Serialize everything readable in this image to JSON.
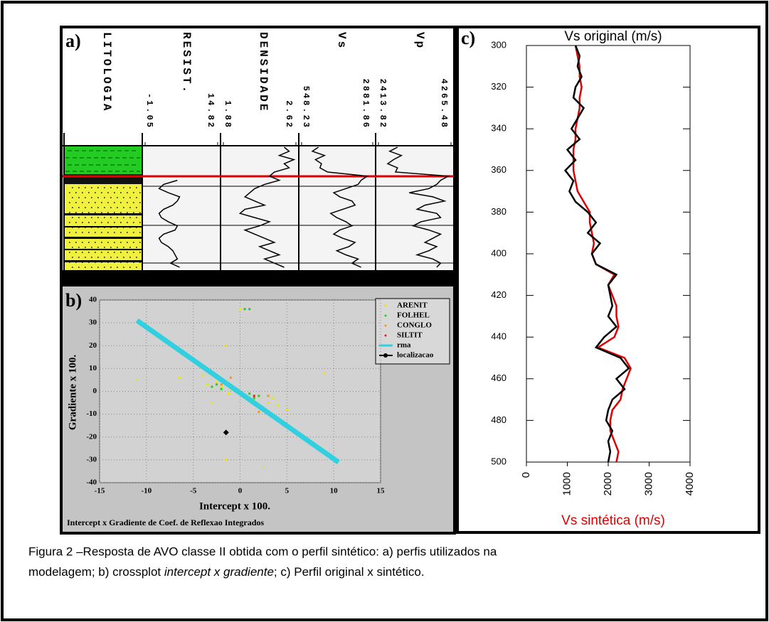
{
  "chart_data": [
    {
      "type": "well-log",
      "panel_label": "a)",
      "lithology_label": "LITOLOGIA",
      "tracks": [
        {
          "name": "RESIST.",
          "xlim": [
            -1.05,
            14.82
          ],
          "xticks": [
            -1.05,
            14.82
          ],
          "color": "#000000",
          "values": [
            null,
            null,
            null,
            null,
            null,
            null,
            null,
            null,
            6,
            3,
            2,
            4,
            6.5,
            6,
            5,
            3,
            2,
            2.5,
            4,
            6,
            5.5,
            3,
            2,
            2.5,
            4,
            5,
            5.5,
            6,
            4.5,
            6.5
          ]
        },
        {
          "name": "DENSIDADE",
          "xlim": [
            1.88,
            2.62
          ],
          "xticks": [
            1.88,
            2.62
          ],
          "color": "#000000",
          "values": [
            2.5,
            2.55,
            2.45,
            2.6,
            2.5,
            2.55,
            2.4,
            2.35,
            2.45,
            2.3,
            2.2,
            2.15,
            2.1,
            2.2,
            2.3,
            2.1,
            2.05,
            2.2,
            2.35,
            2.25,
            2.1,
            2.2,
            2.3,
            2.4,
            2.25,
            2.35,
            2.45,
            2.3,
            2.4,
            2.5
          ]
        },
        {
          "name": "Vs",
          "xlim": [
            548.23,
            2881.86
          ],
          "xticks": [
            548.23,
            2881.86
          ],
          "color": "#000000",
          "values": [
            1100,
            900,
            1300,
            1000,
            1200,
            1150,
            1400,
            2700,
            2500,
            2400,
            2000,
            1600,
            1800,
            2200,
            2300,
            1900,
            1500,
            1700,
            2000,
            2200,
            1800,
            1600,
            1900,
            2300,
            2100,
            1700,
            2000,
            2400,
            2200,
            2500
          ]
        },
        {
          "name": "Vp",
          "xlim": [
            2413.82,
            4265.48
          ],
          "xticks": [
            2413.82,
            4265.48
          ],
          "color": "#000000",
          "values": [
            2900,
            2700,
            3000,
            2800,
            2650,
            2900,
            2850,
            4200,
            4000,
            3900,
            3700,
            3200,
            3800,
            4100,
            3600,
            3400,
            3900,
            4000,
            3500,
            3300,
            3700,
            4000,
            3800,
            3600,
            3900,
            3700,
            3400,
            3800,
            4000,
            3900
          ]
        }
      ]
    },
    {
      "type": "scatter",
      "panel_label": "b)",
      "title": "Intercept x Gradiente de Coef. de Reflexao Integrados",
      "xlabel": "Intercept x 100.",
      "ylabel": "Gradiente x 100.",
      "xlim": [
        -15,
        15
      ],
      "xticks": [
        -15,
        -10,
        -5,
        0,
        5,
        10,
        15
      ],
      "ylim": [
        -40,
        40
      ],
      "yticks": [
        -40,
        -30,
        -20,
        -10,
        0,
        10,
        20,
        30,
        40
      ],
      "grid": true,
      "series": [
        {
          "name": "ARENIT",
          "color": "#e8e800",
          "style": "dot",
          "x": [
            -11,
            -6.5,
            -4,
            -3.5,
            -3,
            -2.5,
            -2,
            -1.5,
            -1,
            -1.5,
            0,
            0.5,
            1,
            1.5,
            2,
            2.5,
            3,
            3.5,
            4,
            5,
            9,
            0,
            2.5,
            -1.2
          ],
          "values": [
            5,
            6,
            7,
            3,
            -5,
            4,
            2,
            20,
            1,
            -30,
            -1,
            -2,
            -3,
            -4,
            -2,
            -7,
            -5,
            -3,
            -6,
            -8,
            8,
            36,
            -33,
            -1
          ]
        },
        {
          "name": "FOLHEL",
          "color": "#22cc22",
          "style": "dot",
          "x": [
            -3,
            -2.5,
            -2,
            -1.5,
            -1,
            -0.5,
            0,
            0.5,
            1,
            1.5,
            2,
            0.5,
            1,
            -1.8
          ],
          "values": [
            2,
            3,
            1,
            4,
            2,
            0,
            -1,
            -2,
            -1,
            -3,
            -2,
            36,
            36,
            5
          ]
        },
        {
          "name": "CONGLO",
          "color": "#e89a20",
          "style": "dot",
          "x": [
            -3,
            -1,
            1,
            2,
            3,
            -2
          ],
          "values": [
            8,
            6,
            -4,
            -9,
            -2,
            3
          ]
        },
        {
          "name": "SILTIT",
          "color": "#e02020",
          "style": "dot",
          "x": [
            0.2,
            1.5
          ],
          "values": [
            -1,
            -2
          ]
        },
        {
          "name": "rma",
          "color": "#30d0e0",
          "style": "line",
          "x": [
            -11,
            10.5
          ],
          "values": [
            31,
            -31
          ]
        },
        {
          "name": "localizacao",
          "color": "#000000",
          "style": "diamond",
          "x": [
            -1.5
          ],
          "values": [
            -18
          ]
        }
      ]
    },
    {
      "type": "line",
      "panel_label": "c)",
      "orientation": "vertical",
      "x": [
        300,
        305,
        310,
        315,
        320,
        325,
        330,
        335,
        340,
        345,
        350,
        355,
        360,
        365,
        370,
        375,
        380,
        385,
        390,
        395,
        400,
        405,
        410,
        415,
        420,
        425,
        430,
        435,
        440,
        445,
        450,
        455,
        460,
        465,
        470,
        475,
        480,
        485,
        490,
        495,
        500
      ],
      "xlim": [
        300,
        500
      ],
      "xticks": [
        300,
        320,
        340,
        360,
        380,
        400,
        420,
        440,
        460,
        480,
        500
      ],
      "ylim": [
        0,
        4000
      ],
      "yticks": [
        0,
        1000,
        2000,
        3000,
        4000
      ],
      "series": [
        {
          "name": "Vs original (m/s)",
          "color": "#000000",
          "values": [
            1200,
            1300,
            1250,
            1350,
            1200,
            1150,
            1400,
            1250,
            1100,
            1300,
            1000,
            1200,
            950,
            1150,
            1050,
            1200,
            1500,
            1700,
            1500,
            1800,
            1600,
            1700,
            2200,
            2000,
            2050,
            2100,
            2000,
            2200,
            1900,
            1700,
            2300,
            2500,
            2200,
            2400,
            2100,
            2000,
            1950,
            2100,
            2000,
            2050,
            2000
          ]
        },
        {
          "name": "Vs sintética (m/s)",
          "color": "#e00000",
          "values": [
            1200,
            1250,
            1300,
            1300,
            1350,
            1300,
            1300,
            1250,
            1200,
            1200,
            1150,
            1150,
            1150,
            1200,
            1250,
            1400,
            1550,
            1550,
            1600,
            1650,
            1600,
            1700,
            2150,
            2000,
            2100,
            2200,
            2200,
            2250,
            2150,
            1750,
            2400,
            2550,
            2450,
            2350,
            2300,
            2100,
            2050,
            2050,
            2150,
            2250,
            2200
          ]
        }
      ]
    }
  ],
  "caption": [
    "Figura 2 –Resposta de AVO classe II obtida com o perfil sintético: a) perfis utilizados na",
    "modelagem; b) crossplot ",
    "intercept x gradiente",
    "; c) Perfil original x sintético."
  ]
}
